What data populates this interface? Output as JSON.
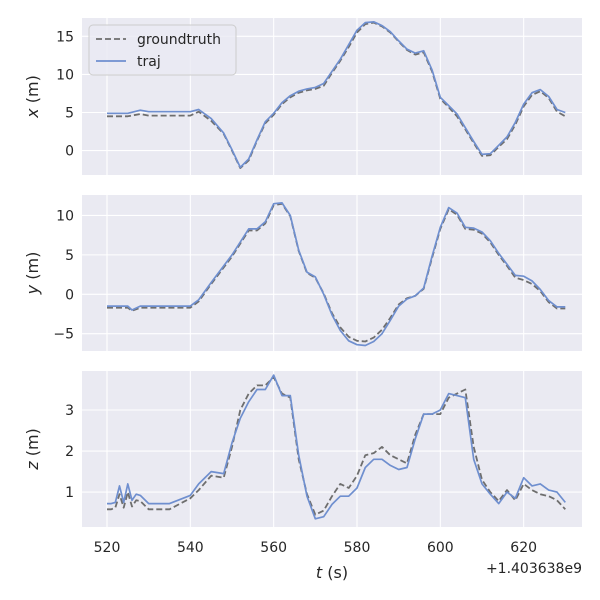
{
  "chart_data": {
    "type": "line",
    "shared_x": {
      "label": "t (s)",
      "label_var": "t",
      "label_unit": " (s)",
      "ticks": [
        520,
        540,
        560,
        580,
        600,
        620
      ],
      "tick_labels": [
        "520",
        "540",
        "560",
        "580",
        "600",
        "620"
      ],
      "range": [
        514,
        634
      ],
      "offset_label": "+1.403638e9"
    },
    "legend": {
      "placement": "top-left",
      "entries": [
        "groundtruth",
        "traj"
      ]
    },
    "style": {
      "background": "#eaeaf2",
      "grid": "#ffffff",
      "groundtruth_color": "#6e6e6e",
      "traj_color": "#6f8fcf",
      "groundtruth_dash": "dashed"
    },
    "panels": [
      {
        "ylabel": "x (m)",
        "ylabel_var": "x",
        "ylabel_unit": " (m)",
        "ylim": [
          -3.2,
          17.4
        ],
        "yticks": [
          0,
          5,
          10,
          15
        ],
        "ytick_labels": [
          "0",
          "5",
          "10",
          "15"
        ],
        "series": [
          {
            "name": "groundtruth",
            "x": [
              520,
              525,
              528,
              530,
              535,
              540,
              542,
              545,
              548,
              550,
              552,
              554,
              556,
              558,
              560,
              562,
              564,
              566,
              568,
              570,
              572,
              574,
              576,
              578,
              580,
              582,
              584,
              586,
              588,
              590,
              592,
              594,
              596,
              598,
              600,
              602,
              604,
              606,
              608,
              610,
              612,
              614,
              616,
              618,
              620,
              622,
              624,
              626,
              628,
              630
            ],
            "y": [
              4.5,
              4.5,
              4.8,
              4.6,
              4.6,
              4.6,
              5.1,
              3.9,
              2.2,
              0.0,
              -2.3,
              -1.3,
              1.3,
              3.6,
              4.7,
              6.1,
              7.0,
              7.6,
              7.9,
              8.1,
              8.5,
              10.2,
              11.8,
              13.6,
              15.5,
              16.6,
              16.8,
              16.3,
              15.5,
              14.3,
              13.2,
              12.6,
              12.9,
              10.4,
              6.8,
              5.7,
              4.5,
              2.8,
              1.0,
              -0.7,
              -0.6,
              0.5,
              1.5,
              3.4,
              5.8,
              7.3,
              7.8,
              6.9,
              5.1,
              4.5
            ]
          },
          {
            "name": "traj",
            "x": [
              520,
              525,
              528,
              530,
              535,
              540,
              542,
              545,
              548,
              550,
              552,
              554,
              556,
              558,
              560,
              562,
              564,
              566,
              568,
              570,
              572,
              574,
              576,
              578,
              580,
              582,
              584,
              586,
              588,
              590,
              592,
              594,
              596,
              598,
              600,
              602,
              604,
              606,
              608,
              610,
              612,
              614,
              616,
              618,
              620,
              622,
              624,
              626,
              628,
              630
            ],
            "y": [
              4.9,
              4.9,
              5.3,
              5.1,
              5.1,
              5.1,
              5.4,
              4.2,
              2.3,
              0.1,
              -2.2,
              -1.1,
              1.4,
              3.8,
              4.9,
              6.3,
              7.2,
              7.8,
              8.1,
              8.3,
              8.8,
              10.4,
              12.0,
              13.9,
              15.8,
              16.8,
              16.9,
              16.4,
              15.6,
              14.4,
              13.3,
              12.8,
              13.1,
              10.6,
              7.0,
              5.9,
              4.8,
              3.0,
              1.2,
              -0.5,
              -0.4,
              0.7,
              1.8,
              3.7,
              6.1,
              7.6,
              8.0,
              7.1,
              5.4,
              5.0
            ]
          }
        ]
      },
      {
        "ylabel": "y (m)",
        "ylabel_var": "y",
        "ylabel_unit": " (m)",
        "ylim": [
          -7.2,
          12.6
        ],
        "yticks": [
          -5,
          0,
          5,
          10
        ],
        "ytick_labels": [
          "−5",
          "0",
          "5",
          "10"
        ],
        "series": [
          {
            "name": "groundtruth",
            "x": [
              520,
              525,
              526,
              528,
              530,
              535,
              540,
              542,
              545,
              548,
              550,
              554,
              556,
              558,
              560,
              562,
              564,
              566,
              568,
              570,
              572,
              574,
              576,
              578,
              580,
              582,
              584,
              586,
              588,
              590,
              592,
              594,
              596,
              598,
              600,
              602,
              604,
              606,
              608,
              610,
              612,
              614,
              616,
              618,
              620,
              622,
              624,
              626,
              628,
              630
            ],
            "y": [
              -1.7,
              -1.7,
              -2.1,
              -1.7,
              -1.7,
              -1.7,
              -1.7,
              -0.9,
              1.3,
              3.4,
              4.8,
              8.1,
              8.1,
              9.0,
              11.3,
              11.5,
              9.9,
              5.5,
              2.7,
              2.1,
              0.1,
              -2.4,
              -4.2,
              -5.4,
              -5.9,
              -6.0,
              -5.5,
              -4.5,
              -3.0,
              -1.3,
              -0.5,
              -0.2,
              0.7,
              4.6,
              8.3,
              10.8,
              10.1,
              8.3,
              8.2,
              7.7,
              6.6,
              5.0,
              3.6,
              2.1,
              1.8,
              1.3,
              0.4,
              -1.0,
              -1.8,
              -1.8
            ]
          },
          {
            "name": "traj",
            "x": [
              520,
              525,
              526,
              528,
              530,
              535,
              540,
              542,
              545,
              548,
              550,
              554,
              556,
              558,
              560,
              562,
              564,
              566,
              568,
              570,
              572,
              574,
              576,
              578,
              580,
              582,
              584,
              586,
              588,
              590,
              592,
              594,
              596,
              598,
              600,
              602,
              604,
              606,
              608,
              610,
              612,
              614,
              616,
              618,
              620,
              622,
              624,
              626,
              628,
              630
            ],
            "y": [
              -1.5,
              -1.5,
              -2.0,
              -1.5,
              -1.5,
              -1.5,
              -1.5,
              -0.7,
              1.5,
              3.6,
              5.0,
              8.3,
              8.3,
              9.2,
              11.5,
              11.6,
              10.0,
              5.6,
              2.8,
              2.2,
              0.0,
              -2.6,
              -4.6,
              -5.9,
              -6.4,
              -6.5,
              -6.0,
              -5.0,
              -3.3,
              -1.5,
              -0.6,
              -0.2,
              0.8,
              4.8,
              8.5,
              11.0,
              10.3,
              8.5,
              8.4,
              7.9,
              6.8,
              5.2,
              3.8,
              2.4,
              2.3,
              1.7,
              0.6,
              -0.8,
              -1.6,
              -1.6
            ]
          }
        ]
      },
      {
        "ylabel": "z (m)",
        "ylabel_var": "z",
        "ylabel_unit": " (m)",
        "ylim": [
          0.15,
          3.95
        ],
        "yticks": [
          1,
          2,
          3
        ],
        "ytick_labels": [
          "1",
          "2",
          "3"
        ],
        "series": [
          {
            "name": "groundtruth",
            "x": [
              520,
              521,
              522,
              523,
              524,
              525,
              526,
              527,
              528,
              530,
              535,
              540,
              542,
              545,
              548,
              550,
              552,
              554,
              556,
              558,
              560,
              562,
              564,
              566,
              568,
              570,
              572,
              574,
              576,
              578,
              580,
              582,
              584,
              586,
              588,
              590,
              592,
              594,
              596,
              598,
              600,
              602,
              604,
              606,
              608,
              610,
              612,
              614,
              616,
              618,
              620,
              622,
              624,
              626,
              628,
              630
            ],
            "y": [
              0.58,
              0.58,
              0.62,
              0.95,
              0.62,
              1.0,
              0.65,
              0.8,
              0.78,
              0.58,
              0.58,
              0.85,
              1.05,
              1.4,
              1.35,
              2.1,
              3.0,
              3.4,
              3.6,
              3.6,
              3.8,
              3.4,
              3.3,
              1.8,
              0.95,
              0.45,
              0.55,
              0.9,
              1.2,
              1.1,
              1.4,
              1.9,
              1.95,
              2.1,
              1.9,
              1.8,
              1.7,
              2.4,
              2.9,
              2.9,
              2.9,
              3.3,
              3.4,
              3.5,
              2.1,
              1.3,
              1.0,
              0.78,
              1.05,
              0.8,
              1.2,
              1.05,
              0.95,
              0.9,
              0.8,
              0.58
            ]
          },
          {
            "name": "traj",
            "x": [
              520,
              521,
              522,
              523,
              524,
              525,
              526,
              527,
              528,
              530,
              535,
              540,
              542,
              545,
              548,
              550,
              552,
              554,
              556,
              558,
              560,
              562,
              564,
              566,
              568,
              570,
              572,
              574,
              576,
              578,
              580,
              582,
              584,
              586,
              588,
              590,
              592,
              594,
              596,
              598,
              600,
              602,
              604,
              606,
              608,
              610,
              612,
              614,
              616,
              618,
              620,
              622,
              624,
              626,
              628,
              630
            ],
            "y": [
              0.72,
              0.72,
              0.75,
              1.15,
              0.75,
              1.2,
              0.8,
              0.95,
              0.92,
              0.72,
              0.72,
              0.92,
              1.2,
              1.5,
              1.45,
              2.2,
              2.8,
              3.2,
              3.5,
              3.5,
              3.85,
              3.35,
              3.35,
              1.9,
              0.9,
              0.35,
              0.4,
              0.7,
              0.9,
              0.9,
              1.1,
              1.6,
              1.8,
              1.8,
              1.65,
              1.55,
              1.6,
              2.3,
              2.9,
              2.9,
              3.0,
              3.4,
              3.35,
              3.3,
              1.8,
              1.2,
              0.95,
              0.72,
              1.0,
              0.85,
              1.35,
              1.15,
              1.2,
              1.05,
              1.0,
              0.75
            ]
          }
        ]
      }
    ]
  }
}
